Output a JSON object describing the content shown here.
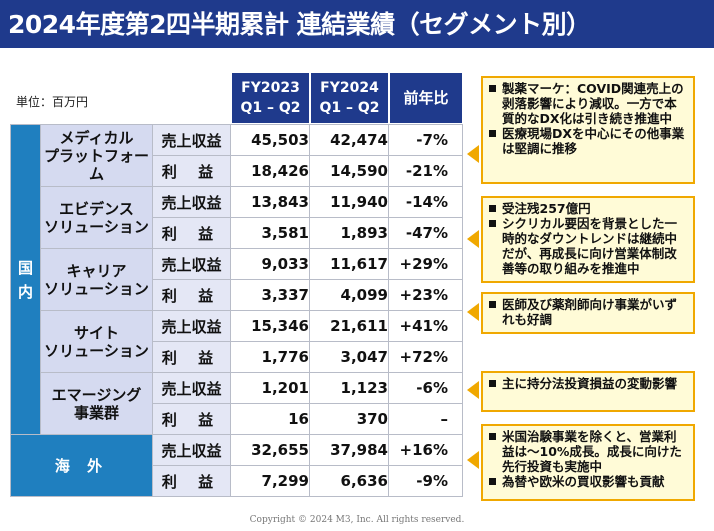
{
  "title": "2024年度第2四半期累計 連結業績（セグメント別）",
  "unit": "単位：百万円",
  "columns": {
    "fy2023_line1": "FY2023",
    "fy2023_line2": "Q1 – Q2",
    "fy2024_line1": "FY2024",
    "fy2024_line2": "Q1 – Q2",
    "yoy": "前年比"
  },
  "regions": {
    "domestic_1": "国",
    "domestic_2": "内",
    "overseas": "海 外"
  },
  "metrics": {
    "revenue": "売上収益",
    "profit": "利 益"
  },
  "segments": [
    {
      "name_1": "メディカル",
      "name_2": "プラットフォーム",
      "revenue": {
        "fy2023": "45,503",
        "fy2024": "42,474",
        "yoy": "-7%"
      },
      "profit": {
        "fy2023": "18,426",
        "fy2024": "14,590",
        "yoy": "-21%"
      }
    },
    {
      "name_1": "エビデンス",
      "name_2": "ソリューション",
      "revenue": {
        "fy2023": "13,843",
        "fy2024": "11,940",
        "yoy": "-14%"
      },
      "profit": {
        "fy2023": "3,581",
        "fy2024": "1,893",
        "yoy": "-47%"
      }
    },
    {
      "name_1": "キャリア",
      "name_2": "ソリューション",
      "revenue": {
        "fy2023": "9,033",
        "fy2024": "11,617",
        "yoy": "+29%"
      },
      "profit": {
        "fy2023": "3,337",
        "fy2024": "4,099",
        "yoy": "+23%"
      }
    },
    {
      "name_1": "サイト",
      "name_2": "ソリューション",
      "revenue": {
        "fy2023": "15,346",
        "fy2024": "21,611",
        "yoy": "+41%"
      },
      "profit": {
        "fy2023": "1,776",
        "fy2024": "3,047",
        "yoy": "+72%"
      }
    },
    {
      "name_1": "エマージング",
      "name_2": "事業群",
      "revenue": {
        "fy2023": "1,201",
        "fy2024": "1,123",
        "yoy": "-6%"
      },
      "profit": {
        "fy2023": "16",
        "fy2024": "370",
        "yoy": "–"
      }
    },
    {
      "name_1": "",
      "name_2": "",
      "revenue": {
        "fy2023": "32,655",
        "fy2024": "37,984",
        "yoy": "+16%"
      },
      "profit": {
        "fy2023": "7,299",
        "fy2024": "6,636",
        "yoy": "-9%"
      }
    }
  ],
  "callouts": [
    [
      "製薬マーケ：COVID関連売上の剥落影響により減収。一方で本質的なDX化は引き続き推進中",
      "医療現場DXを中心にその他事業は堅調に推移"
    ],
    [
      "受注残257億円",
      "シクリカル要因を背景とした一時的なダウントレンドは継続中だが、再成長に向け営業体制改善等の取り組みを推進中"
    ],
    [
      "医師及び薬剤師向け事業がいずれも好調"
    ],
    [
      "主に持分法投資損益の変動影響"
    ],
    [
      "米国治験事業を除くと、営業利益は～10%成長。成長に向けた先行投資も実施中",
      "為替や欧米の買収影響も貢献"
    ]
  ],
  "footer": "Copyright © 2024  M3, Inc.  All rights reserved.",
  "colors": {
    "navy": "#1f3a8c",
    "blue": "#1f7fbf",
    "callout_border": "#f0a800",
    "callout_fill": "#fffbd7"
  }
}
